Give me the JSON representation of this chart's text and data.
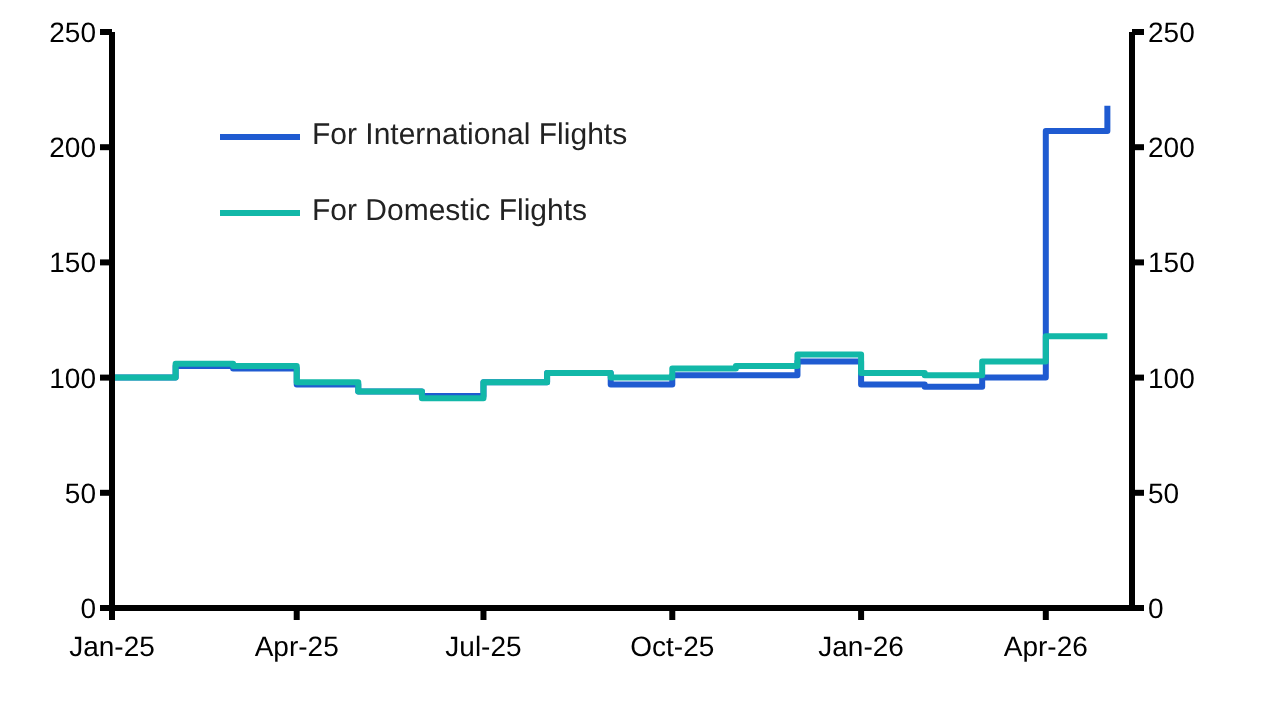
{
  "chart_data": {
    "type": "step",
    "xlim": [
      "2025-01-01",
      "2026-05-13"
    ],
    "xticks": [
      {
        "value": "2025-01-01",
        "label": "Jan-25"
      },
      {
        "value": "2025-04-01",
        "label": "Apr-25"
      },
      {
        "value": "2025-07-01",
        "label": "Jul-25"
      },
      {
        "value": "2025-10-01",
        "label": "Oct-25"
      },
      {
        "value": "2026-01-01",
        "label": "Jan-26"
      },
      {
        "value": "2026-04-01",
        "label": "Apr-26"
      }
    ],
    "ylim": [
      0,
      250
    ],
    "yticks": [
      0,
      50,
      100,
      150,
      200,
      250
    ],
    "y2lim": [
      0,
      250
    ],
    "y2ticks": [
      0,
      50,
      100,
      150,
      200,
      250
    ],
    "x": [
      "2025-01-01",
      "2025-02-01",
      "2025-03-01",
      "2025-04-01",
      "2025-05-01",
      "2025-06-01",
      "2025-07-01",
      "2025-08-01",
      "2025-09-01",
      "2025-10-01",
      "2025-11-01",
      "2025-12-01",
      "2026-01-01",
      "2026-02-01",
      "2026-03-01",
      "2026-04-01",
      "2026-05-01"
    ],
    "series": [
      {
        "name": "For International Flights",
        "color": "#1f5bd1",
        "values": [
          100,
          105,
          104,
          97,
          94,
          92,
          98,
          102,
          97,
          101,
          101,
          107,
          97,
          96,
          100,
          207,
          218
        ]
      },
      {
        "name": "For Domestic Flights",
        "color": "#12b8a8",
        "values": [
          100,
          106,
          105,
          98,
          94,
          91,
          98,
          102,
          100,
          104,
          105,
          110,
          102,
          101,
          107,
          118,
          118
        ]
      }
    ],
    "legend": "top left",
    "marker": "none",
    "line_style": "solid"
  }
}
